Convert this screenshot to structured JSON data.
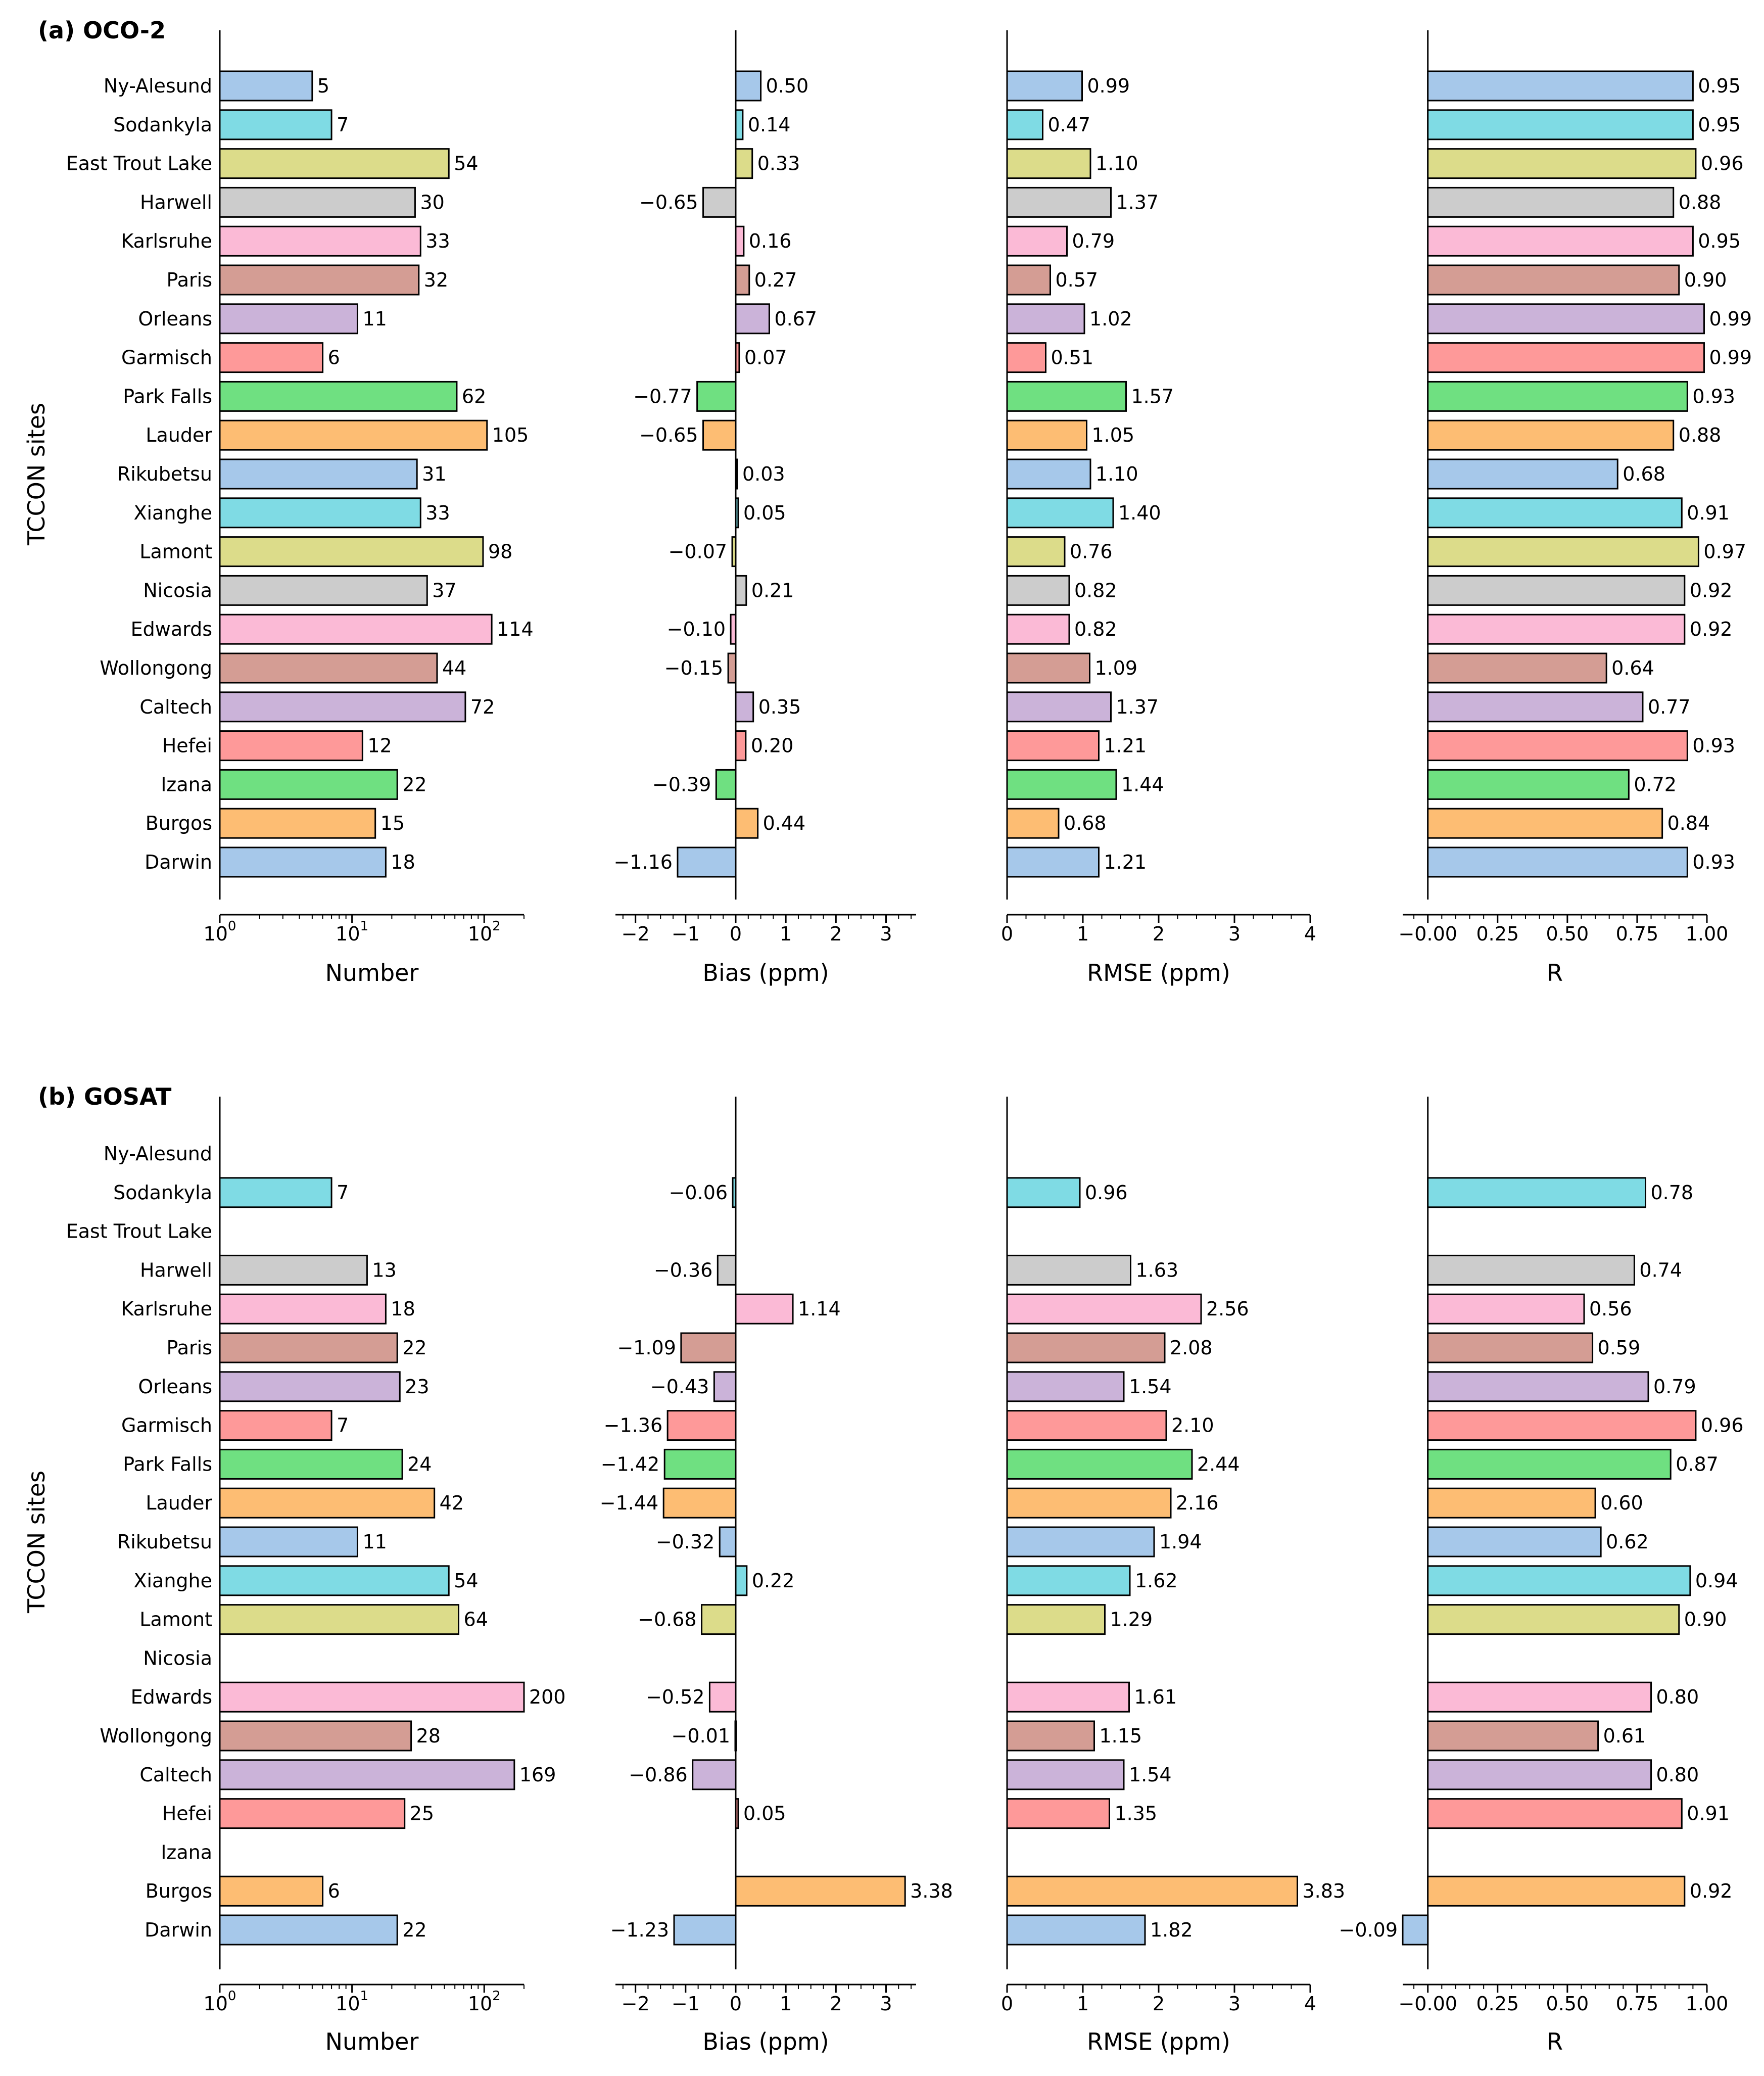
{
  "sites": [
    "Ny-Alesund",
    "Sodankyla",
    "East Trout Lake",
    "Harwell",
    "Karlsruhe",
    "Paris",
    "Orleans",
    "Garmisch",
    "Park Falls",
    "Lauder",
    "Rikubetsu",
    "Xianghe",
    "Lamont",
    "Nicosia",
    "Edwards",
    "Wollongong",
    "Caltech",
    "Hefei",
    "Izana",
    "Burgos",
    "Darwin"
  ],
  "colors": [
    "#a6c8ea",
    "#7fdbe4",
    "#dcdc8a",
    "#cccccc",
    "#fbbad6",
    "#d49d94",
    "#cbb3d9",
    "#fe9999",
    "#6fe081",
    "#fdbd73"
  ],
  "y_axis_label": "TCCON sites",
  "metrics": [
    {
      "key": "number",
      "xlabel": "Number",
      "scale": "log",
      "ticks": [
        "10^0",
        "10^1",
        "10^2"
      ]
    },
    {
      "key": "bias",
      "xlabel": "Bias (ppm)",
      "scale": "linear",
      "ticks": [
        "−2",
        "−1",
        "0",
        "1",
        "2",
        "3"
      ]
    },
    {
      "key": "rmse",
      "xlabel": "RMSE (ppm)",
      "scale": "linear",
      "ticks": [
        "0",
        "1",
        "2",
        "3",
        "4"
      ]
    },
    {
      "key": "r",
      "xlabel": "R",
      "scale": "linear",
      "ticks": [
        "−0.00",
        "0.25",
        "0.50",
        "0.75",
        "1.00"
      ]
    }
  ],
  "chart_data": [
    {
      "type": "bar",
      "orientation": "horizontal",
      "title": "(a) OCO-2",
      "ylabel": "TCCON sites",
      "categories": [
        "Ny-Alesund",
        "Sodankyla",
        "East Trout Lake",
        "Harwell",
        "Karlsruhe",
        "Paris",
        "Orleans",
        "Garmisch",
        "Park Falls",
        "Lauder",
        "Rikubetsu",
        "Xianghe",
        "Lamont",
        "Nicosia",
        "Edwards",
        "Wollongong",
        "Caltech",
        "Hefei",
        "Izana",
        "Burgos",
        "Darwin"
      ],
      "series": [
        {
          "name": "Number",
          "xlim": [
            1,
            200
          ],
          "scale": "log",
          "values": [
            5,
            7,
            54,
            30,
            33,
            32,
            11,
            6,
            62,
            105,
            31,
            33,
            98,
            37,
            114,
            44,
            72,
            12,
            22,
            15,
            18
          ],
          "labels": [
            "5",
            "7",
            "54",
            "30",
            "33",
            "32",
            "11",
            "6",
            "62",
            "105",
            "31",
            "33",
            "98",
            "37",
            "114",
            "44",
            "72",
            "12",
            "22",
            "15",
            "18"
          ]
        },
        {
          "name": "Bias (ppm)",
          "xlim": [
            -2.4,
            3.6
          ],
          "values": [
            0.5,
            0.14,
            0.33,
            -0.65,
            0.16,
            0.27,
            0.67,
            0.07,
            -0.77,
            -0.65,
            0.03,
            0.05,
            -0.07,
            0.21,
            -0.1,
            -0.15,
            0.35,
            0.2,
            -0.39,
            0.44,
            -1.16
          ],
          "labels": [
            "0.50",
            "0.14",
            "0.33",
            "−0.65",
            "0.16",
            "0.27",
            "0.67",
            "0.07",
            "−0.77",
            "−0.65",
            "0.03",
            "0.05",
            "−0.07",
            "0.21",
            "−0.10",
            "−0.15",
            "0.35",
            "0.20",
            "−0.39",
            "0.44",
            "−1.16"
          ]
        },
        {
          "name": "RMSE (ppm)",
          "xlim": [
            0,
            4
          ],
          "values": [
            0.99,
            0.47,
            1.1,
            1.37,
            0.79,
            0.57,
            1.02,
            0.51,
            1.57,
            1.05,
            1.1,
            1.4,
            0.76,
            0.82,
            0.82,
            1.09,
            1.37,
            1.21,
            1.44,
            0.68,
            1.21
          ],
          "labels": [
            "0.99",
            "0.47",
            "1.10",
            "1.37",
            "0.79",
            "0.57",
            "1.02",
            "0.51",
            "1.57",
            "1.05",
            "1.10",
            "1.40",
            "0.76",
            "0.82",
            "0.82",
            "1.09",
            "1.37",
            "1.21",
            "1.44",
            "0.68",
            "1.21"
          ]
        },
        {
          "name": "R",
          "xlim": [
            -0.09,
            1.0
          ],
          "values": [
            0.95,
            0.95,
            0.96,
            0.88,
            0.95,
            0.9,
            0.99,
            0.99,
            0.93,
            0.88,
            0.68,
            0.91,
            0.97,
            0.92,
            0.92,
            0.64,
            0.77,
            0.93,
            0.72,
            0.84,
            0.93
          ],
          "labels": [
            "0.95",
            "0.95",
            "0.96",
            "0.88",
            "0.95",
            "0.90",
            "0.99",
            "0.99",
            "0.93",
            "0.88",
            "0.68",
            "0.91",
            "0.97",
            "0.92",
            "0.92",
            "0.64",
            "0.77",
            "0.93",
            "0.72",
            "0.84",
            "0.93"
          ]
        }
      ]
    },
    {
      "type": "bar",
      "orientation": "horizontal",
      "title": "(b) GOSAT",
      "ylabel": "TCCON sites",
      "categories": [
        "Ny-Alesund",
        "Sodankyla",
        "East Trout Lake",
        "Harwell",
        "Karlsruhe",
        "Paris",
        "Orleans",
        "Garmisch",
        "Park Falls",
        "Lauder",
        "Rikubetsu",
        "Xianghe",
        "Lamont",
        "Nicosia",
        "Edwards",
        "Wollongong",
        "Caltech",
        "Hefei",
        "Izana",
        "Burgos",
        "Darwin"
      ],
      "series": [
        {
          "name": "Number",
          "xlim": [
            1,
            200
          ],
          "scale": "log",
          "values": [
            null,
            7,
            null,
            13,
            18,
            22,
            23,
            7,
            24,
            42,
            11,
            54,
            64,
            null,
            200,
            28,
            169,
            25,
            null,
            6,
            22
          ],
          "labels": [
            null,
            "7",
            null,
            "13",
            "18",
            "22",
            "23",
            "7",
            "24",
            "42",
            "11",
            "54",
            "64",
            null,
            "200",
            "28",
            "169",
            "25",
            null,
            "6",
            "22"
          ]
        },
        {
          "name": "Bias (ppm)",
          "xlim": [
            -2.4,
            3.6
          ],
          "values": [
            null,
            -0.06,
            null,
            -0.36,
            1.14,
            -1.09,
            -0.43,
            -1.36,
            -1.42,
            -1.44,
            -0.32,
            0.22,
            -0.68,
            null,
            -0.52,
            -0.01,
            -0.86,
            0.05,
            null,
            3.38,
            -1.23
          ],
          "labels": [
            null,
            "−0.06",
            null,
            "−0.36",
            "1.14",
            "−1.09",
            "−0.43",
            "−1.36",
            "−1.42",
            "−1.44",
            "−0.32",
            "0.22",
            "−0.68",
            null,
            "−0.52",
            "−0.01",
            "−0.86",
            "0.05",
            null,
            "3.38",
            "−1.23"
          ]
        },
        {
          "name": "RMSE (ppm)",
          "xlim": [
            0,
            4
          ],
          "values": [
            null,
            0.96,
            null,
            1.63,
            2.56,
            2.08,
            1.54,
            2.1,
            2.44,
            2.16,
            1.94,
            1.62,
            1.29,
            null,
            1.61,
            1.15,
            1.54,
            1.35,
            null,
            3.83,
            1.82
          ],
          "labels": [
            null,
            "0.96",
            null,
            "1.63",
            "2.56",
            "2.08",
            "1.54",
            "2.10",
            "2.44",
            "2.16",
            "1.94",
            "1.62",
            "1.29",
            null,
            "1.61",
            "1.15",
            "1.54",
            "1.35",
            null,
            "3.83",
            "1.82"
          ]
        },
        {
          "name": "R",
          "xlim": [
            -0.09,
            1.0
          ],
          "values": [
            null,
            0.78,
            null,
            0.74,
            0.56,
            0.59,
            0.79,
            0.96,
            0.87,
            0.6,
            0.62,
            0.94,
            0.9,
            null,
            0.8,
            0.61,
            0.8,
            0.91,
            null,
            0.92,
            -0.09
          ],
          "labels": [
            null,
            "0.78",
            null,
            "0.74",
            "0.56",
            "0.59",
            "0.79",
            "0.96",
            "0.87",
            "0.60",
            "0.62",
            "0.94",
            "0.90",
            null,
            "0.80",
            "0.61",
            "0.80",
            "0.91",
            null,
            "0.92",
            "−0.09"
          ]
        }
      ]
    }
  ]
}
